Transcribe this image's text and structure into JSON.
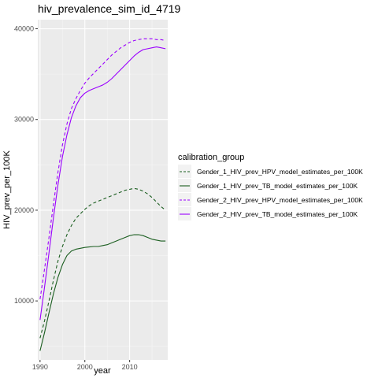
{
  "chart_data": {
    "type": "line",
    "title": "hiv_prevalence_sim_id_4719",
    "xlabel": "year",
    "ylabel": "HIV_prev_per_100K",
    "xlim": [
      1989.5,
      2018.5
    ],
    "ylim": [
      3500,
      41000
    ],
    "x_ticks": [
      1990,
      2000,
      2010
    ],
    "y_ticks": [
      10000,
      20000,
      30000,
      40000
    ],
    "grid": true,
    "legend": {
      "title": "calibration_group",
      "position": "right"
    },
    "x": [
      1990,
      1991,
      1992,
      1993,
      1994,
      1995,
      1996,
      1997,
      1998,
      1999,
      2000,
      2001,
      2002,
      2003,
      2004,
      2005,
      2006,
      2007,
      2008,
      2009,
      2010,
      2011,
      2012,
      2013,
      2014,
      2015,
      2016,
      2017,
      2018
    ],
    "series": [
      {
        "name": "Gender_1_HIV_prev_HPV_model_estimates_per_100K",
        "color": "#1b5e20",
        "dash": "dashed",
        "values": [
          5900,
          7800,
          10000,
          12300,
          14400,
          16000,
          17300,
          18300,
          19100,
          19600,
          20100,
          20500,
          20800,
          21000,
          21200,
          21400,
          21600,
          21800,
          22000,
          22200,
          22300,
          22400,
          22300,
          22100,
          21800,
          21400,
          20900,
          20400,
          20000
        ]
      },
      {
        "name": "Gender_1_HIV_prev_TB_model_estimates_per_100K",
        "color": "#1b5e20",
        "dash": "solid",
        "values": [
          4500,
          6500,
          8700,
          10800,
          12600,
          14000,
          15000,
          15500,
          15700,
          15800,
          15900,
          15950,
          16000,
          16000,
          16100,
          16200,
          16400,
          16600,
          16800,
          17000,
          17200,
          17300,
          17300,
          17200,
          17000,
          16800,
          16700,
          16600,
          16600
        ]
      },
      {
        "name": "Gender_2_HIV_prev_HPV_model_estimates_per_100K",
        "color": "#9b00ff",
        "dash": "dashed",
        "values": [
          10200,
          13500,
          17000,
          20700,
          24200,
          27200,
          29500,
          31200,
          32300,
          33200,
          34000,
          34600,
          35100,
          35600,
          36100,
          36600,
          37100,
          37500,
          37900,
          38200,
          38500,
          38700,
          38800,
          38900,
          38900,
          38900,
          38800,
          38800,
          38700
        ]
      },
      {
        "name": "Gender_2_HIV_prev_TB_model_estimates_per_100K",
        "color": "#9b00ff",
        "dash": "solid",
        "values": [
          7900,
          11500,
          15300,
          19200,
          22800,
          25900,
          28300,
          30200,
          31500,
          32400,
          32900,
          33200,
          33400,
          33600,
          33800,
          34100,
          34500,
          35000,
          35500,
          36000,
          36500,
          37000,
          37400,
          37700,
          37800,
          37900,
          38000,
          37900,
          37800
        ]
      }
    ]
  }
}
